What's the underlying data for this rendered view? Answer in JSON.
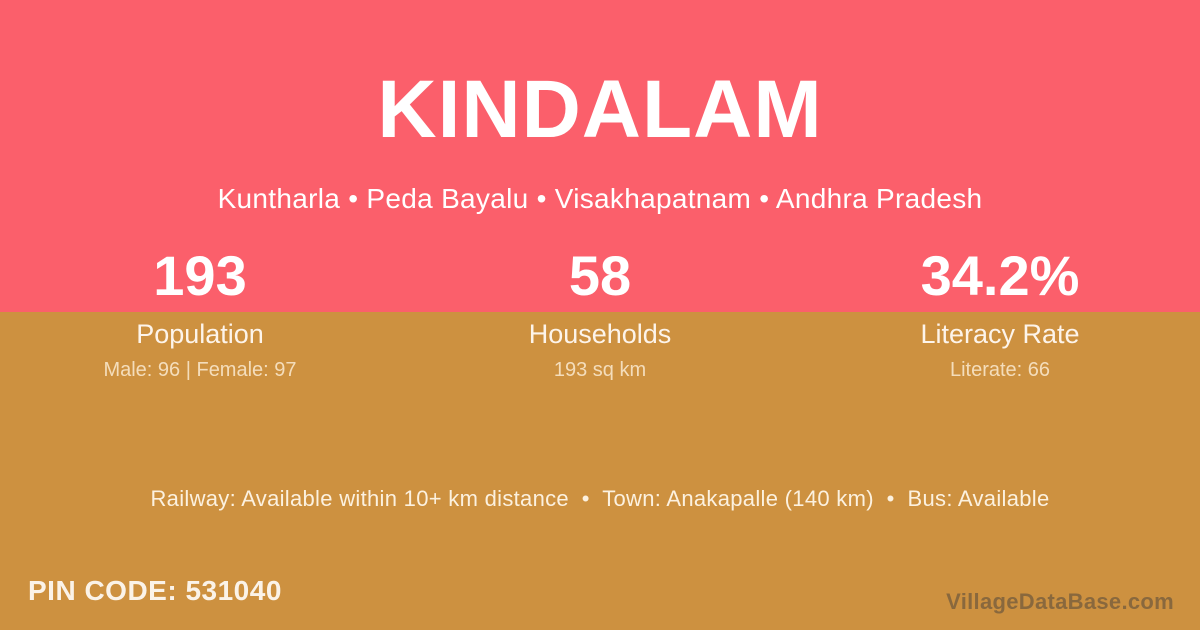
{
  "header": {
    "title": "KINDALAM",
    "subtitle": "Kuntharla • Peda Bayalu • Visakhapatnam • Andhra Pradesh"
  },
  "stats": [
    {
      "value": "193",
      "label": "Population",
      "detail": "Male: 96 | Female: 97"
    },
    {
      "value": "58",
      "label": "Households",
      "detail": "193 sq km"
    },
    {
      "value": "34.2%",
      "label": "Literacy Rate",
      "detail": "Literate: 66"
    }
  ],
  "info": {
    "line": "Railway: Available within 10+ km distance  •  Town: Anakapalle (140 km)  •  Bus: Available",
    "items": [
      "Railway: Available within 10+ km distance",
      "Town: Anakapalle (140 km)",
      "Bus: Available"
    ]
  },
  "footer": {
    "pin_code": "PIN CODE: 531040",
    "watermark": "VillageDataBase.com"
  },
  "colors": {
    "top_background": "#fb5f6b",
    "bottom_background": "#cd9140",
    "text_primary": "#ffffff",
    "text_muted": "#f0dcbd",
    "watermark": "#7d7468"
  }
}
